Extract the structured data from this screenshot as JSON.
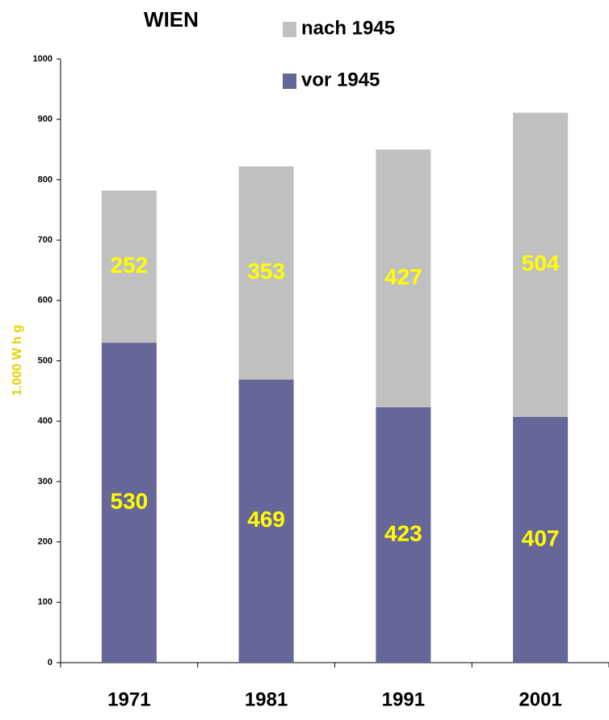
{
  "chart_data": {
    "type": "stacked_bar",
    "title": "WIEN",
    "y_label": "1.000 W h g",
    "categories": [
      "1971",
      "1981",
      "1991",
      "2001"
    ],
    "series": [
      {
        "name": "vor 1945",
        "color": "#666699",
        "values": [
          530,
          469,
          423,
          407
        ]
      },
      {
        "name": "nach 1945",
        "color": "#c0c0c0",
        "values": [
          252,
          353,
          427,
          504
        ]
      }
    ],
    "ylim": [
      0,
      1000
    ],
    "yticks": [
      0,
      100,
      200,
      300,
      400,
      500,
      600,
      700,
      800,
      900,
      1000
    ],
    "label_color": "#ffff00",
    "y_label_color": "#e8d000"
  }
}
